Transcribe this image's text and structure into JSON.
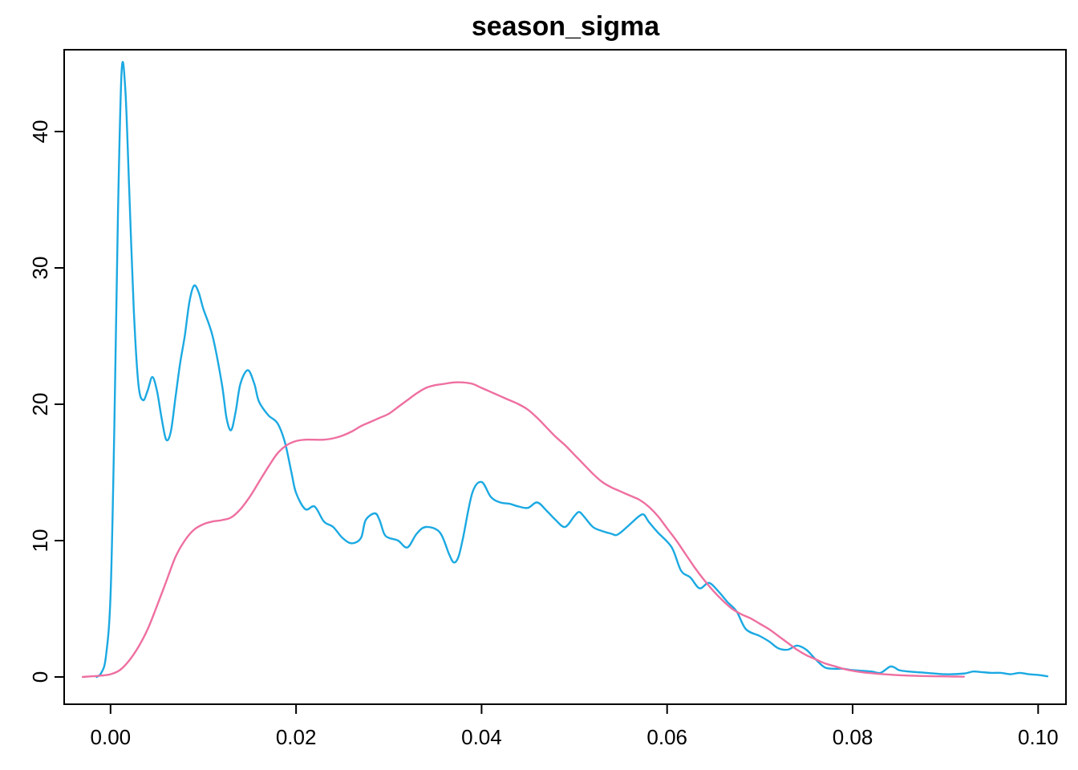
{
  "chart_data": {
    "type": "line",
    "title": "season_sigma",
    "xlabel": "",
    "ylabel": "",
    "xlim": [
      -0.005,
      0.103
    ],
    "ylim": [
      -2,
      46
    ],
    "xticks": [
      0.0,
      0.02,
      0.04,
      0.06,
      0.08,
      0.1
    ],
    "xtick_labels": [
      "0.00",
      "0.02",
      "0.04",
      "0.06",
      "0.08",
      "0.10"
    ],
    "yticks": [
      0,
      10,
      20,
      30,
      40
    ],
    "ytick_labels": [
      "0",
      "10",
      "20",
      "30",
      "40"
    ],
    "grid": false,
    "series": [
      {
        "color": "#1BA9E2",
        "points": [
          [
            -0.0015,
            0
          ],
          [
            -0.001,
            0.3
          ],
          [
            -0.0005,
            1.5
          ],
          [
            0.0,
            6
          ],
          [
            0.0004,
            18
          ],
          [
            0.0008,
            34
          ],
          [
            0.0012,
            44.5
          ],
          [
            0.0016,
            43
          ],
          [
            0.002,
            36
          ],
          [
            0.0025,
            27
          ],
          [
            0.003,
            21.5
          ],
          [
            0.0035,
            20.3
          ],
          [
            0.004,
            21
          ],
          [
            0.0045,
            22
          ],
          [
            0.005,
            21
          ],
          [
            0.0055,
            19
          ],
          [
            0.006,
            17.4
          ],
          [
            0.0065,
            18
          ],
          [
            0.007,
            20.5
          ],
          [
            0.0075,
            23
          ],
          [
            0.008,
            25
          ],
          [
            0.0085,
            27.5
          ],
          [
            0.009,
            28.7
          ],
          [
            0.0095,
            28.2
          ],
          [
            0.01,
            27
          ],
          [
            0.011,
            25
          ],
          [
            0.012,
            21.5
          ],
          [
            0.0125,
            19
          ],
          [
            0.013,
            18.1
          ],
          [
            0.0135,
            19.5
          ],
          [
            0.014,
            21.5
          ],
          [
            0.0148,
            22.5
          ],
          [
            0.0155,
            21.5
          ],
          [
            0.016,
            20.2
          ],
          [
            0.017,
            19.2
          ],
          [
            0.018,
            18.6
          ],
          [
            0.0188,
            17.2
          ],
          [
            0.0195,
            15
          ],
          [
            0.02,
            13.5
          ],
          [
            0.021,
            12.3
          ],
          [
            0.022,
            12.5
          ],
          [
            0.023,
            11.4
          ],
          [
            0.024,
            11
          ],
          [
            0.025,
            10.2
          ],
          [
            0.026,
            9.8
          ],
          [
            0.027,
            10.2
          ],
          [
            0.0275,
            11.5
          ],
          [
            0.0285,
            12
          ],
          [
            0.029,
            11.5
          ],
          [
            0.0295,
            10.5
          ],
          [
            0.03,
            10.2
          ],
          [
            0.031,
            10
          ],
          [
            0.032,
            9.5
          ],
          [
            0.033,
            10.5
          ],
          [
            0.034,
            11
          ],
          [
            0.0355,
            10.6
          ],
          [
            0.0365,
            9
          ],
          [
            0.037,
            8.4
          ],
          [
            0.0375,
            8.8
          ],
          [
            0.038,
            10.2
          ],
          [
            0.039,
            13.5
          ],
          [
            0.04,
            14.3
          ],
          [
            0.041,
            13.2
          ],
          [
            0.042,
            12.8
          ],
          [
            0.043,
            12.7
          ],
          [
            0.044,
            12.5
          ],
          [
            0.045,
            12.4
          ],
          [
            0.046,
            12.8
          ],
          [
            0.047,
            12.2
          ],
          [
            0.048,
            11.5
          ],
          [
            0.049,
            11
          ],
          [
            0.05,
            11.8
          ],
          [
            0.0505,
            12.1
          ],
          [
            0.051,
            11.8
          ],
          [
            0.052,
            11
          ],
          [
            0.053,
            10.7
          ],
          [
            0.054,
            10.5
          ],
          [
            0.0545,
            10.4
          ],
          [
            0.055,
            10.6
          ],
          [
            0.056,
            11.2
          ],
          [
            0.057,
            11.8
          ],
          [
            0.0575,
            11.9
          ],
          [
            0.058,
            11.4
          ],
          [
            0.059,
            10.6
          ],
          [
            0.0605,
            9.5
          ],
          [
            0.0615,
            7.8
          ],
          [
            0.0625,
            7.3
          ],
          [
            0.0635,
            6.5
          ],
          [
            0.0645,
            6.9
          ],
          [
            0.0655,
            6.3
          ],
          [
            0.0665,
            5.5
          ],
          [
            0.0675,
            4.8
          ],
          [
            0.0685,
            3.5
          ],
          [
            0.07,
            3
          ],
          [
            0.071,
            2.6
          ],
          [
            0.072,
            2.1
          ],
          [
            0.073,
            2.0
          ],
          [
            0.074,
            2.3
          ],
          [
            0.075,
            2.0
          ],
          [
            0.076,
            1.3
          ],
          [
            0.077,
            0.7
          ],
          [
            0.078,
            0.6
          ],
          [
            0.079,
            0.6
          ],
          [
            0.08,
            0.5
          ],
          [
            0.082,
            0.4
          ],
          [
            0.083,
            0.3
          ],
          [
            0.084,
            0.75
          ],
          [
            0.0845,
            0.7
          ],
          [
            0.085,
            0.5
          ],
          [
            0.086,
            0.4
          ],
          [
            0.088,
            0.3
          ],
          [
            0.09,
            0.2
          ],
          [
            0.092,
            0.25
          ],
          [
            0.093,
            0.4
          ],
          [
            0.094,
            0.35
          ],
          [
            0.095,
            0.3
          ],
          [
            0.096,
            0.3
          ],
          [
            0.097,
            0.2
          ],
          [
            0.098,
            0.3
          ],
          [
            0.099,
            0.2
          ],
          [
            0.1,
            0.15
          ],
          [
            0.101,
            0.05
          ]
        ]
      },
      {
        "color": "#EE6FA0",
        "points": [
          [
            -0.003,
            0
          ],
          [
            -0.002,
            0.05
          ],
          [
            -0.001,
            0.1
          ],
          [
            0.0,
            0.2
          ],
          [
            0.001,
            0.5
          ],
          [
            0.002,
            1.2
          ],
          [
            0.003,
            2.2
          ],
          [
            0.004,
            3.5
          ],
          [
            0.005,
            5.2
          ],
          [
            0.006,
            7
          ],
          [
            0.007,
            8.8
          ],
          [
            0.008,
            10
          ],
          [
            0.009,
            10.8
          ],
          [
            0.01,
            11.2
          ],
          [
            0.011,
            11.4
          ],
          [
            0.012,
            11.5
          ],
          [
            0.013,
            11.7
          ],
          [
            0.014,
            12.3
          ],
          [
            0.015,
            13.2
          ],
          [
            0.016,
            14.3
          ],
          [
            0.017,
            15.4
          ],
          [
            0.018,
            16.4
          ],
          [
            0.019,
            17
          ],
          [
            0.02,
            17.3
          ],
          [
            0.021,
            17.4
          ],
          [
            0.022,
            17.4
          ],
          [
            0.023,
            17.4
          ],
          [
            0.024,
            17.5
          ],
          [
            0.025,
            17.7
          ],
          [
            0.026,
            18
          ],
          [
            0.027,
            18.4
          ],
          [
            0.028,
            18.7
          ],
          [
            0.029,
            19
          ],
          [
            0.03,
            19.3
          ],
          [
            0.031,
            19.8
          ],
          [
            0.032,
            20.3
          ],
          [
            0.033,
            20.8
          ],
          [
            0.034,
            21.2
          ],
          [
            0.035,
            21.4
          ],
          [
            0.036,
            21.5
          ],
          [
            0.037,
            21.6
          ],
          [
            0.038,
            21.6
          ],
          [
            0.039,
            21.5
          ],
          [
            0.04,
            21.2
          ],
          [
            0.041,
            20.9
          ],
          [
            0.042,
            20.6
          ],
          [
            0.043,
            20.3
          ],
          [
            0.044,
            20
          ],
          [
            0.045,
            19.6
          ],
          [
            0.046,
            19
          ],
          [
            0.047,
            18.3
          ],
          [
            0.048,
            17.6
          ],
          [
            0.049,
            17
          ],
          [
            0.05,
            16.3
          ],
          [
            0.051,
            15.6
          ],
          [
            0.052,
            14.9
          ],
          [
            0.053,
            14.3
          ],
          [
            0.054,
            13.9
          ],
          [
            0.055,
            13.6
          ],
          [
            0.056,
            13.3
          ],
          [
            0.057,
            13
          ],
          [
            0.058,
            12.5
          ],
          [
            0.059,
            11.8
          ],
          [
            0.06,
            10.9
          ],
          [
            0.061,
            10
          ],
          [
            0.062,
            9
          ],
          [
            0.063,
            8
          ],
          [
            0.064,
            7.1
          ],
          [
            0.065,
            6.3
          ],
          [
            0.066,
            5.6
          ],
          [
            0.067,
            5
          ],
          [
            0.068,
            4.6
          ],
          [
            0.069,
            4.3
          ],
          [
            0.07,
            3.9
          ],
          [
            0.071,
            3.5
          ],
          [
            0.072,
            3
          ],
          [
            0.073,
            2.5
          ],
          [
            0.074,
            2
          ],
          [
            0.075,
            1.6
          ],
          [
            0.076,
            1.3
          ],
          [
            0.077,
            1
          ],
          [
            0.078,
            0.8
          ],
          [
            0.079,
            0.6
          ],
          [
            0.08,
            0.45
          ],
          [
            0.081,
            0.35
          ],
          [
            0.082,
            0.28
          ],
          [
            0.083,
            0.22
          ],
          [
            0.084,
            0.17
          ],
          [
            0.085,
            0.13
          ],
          [
            0.086,
            0.1
          ],
          [
            0.087,
            0.08
          ],
          [
            0.088,
            0.06
          ],
          [
            0.089,
            0.05
          ],
          [
            0.09,
            0.04
          ],
          [
            0.091,
            0.03
          ],
          [
            0.092,
            0.02
          ]
        ]
      }
    ]
  }
}
